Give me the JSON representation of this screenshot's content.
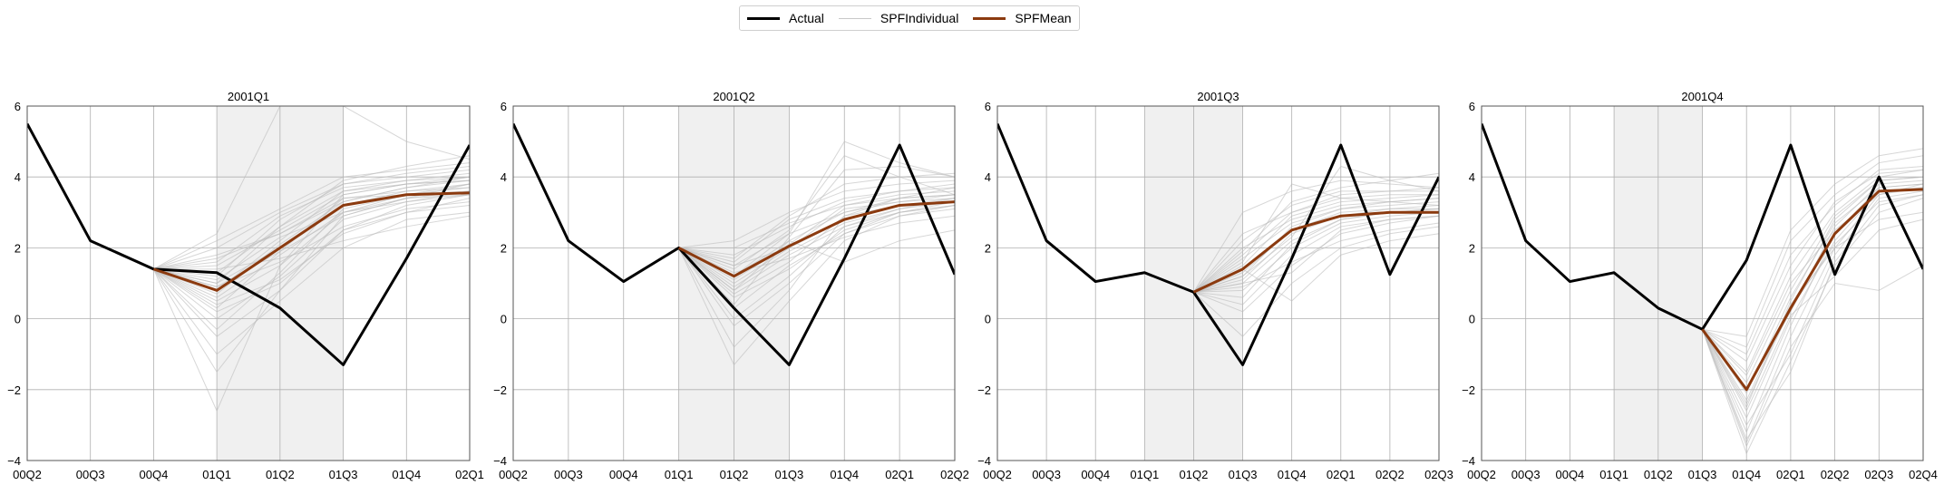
{
  "legend": {
    "items": [
      {
        "label": "Actual",
        "color": "#000000"
      },
      {
        "label": "SPFIndividual",
        "color": "#c8c8c8"
      },
      {
        "label": "SPFMean",
        "color": "#8b3a0f"
      }
    ]
  },
  "colors": {
    "actual": "#000000",
    "individual": "#bdbdbd",
    "mean": "#8b3a0f",
    "shade": "#f0f0f0",
    "grid": "#b0b0b0"
  },
  "chart_data": [
    {
      "type": "line",
      "title": "2001Q1",
      "categories": [
        "00Q2",
        "00Q3",
        "00Q4",
        "01Q1",
        "01Q2",
        "01Q3",
        "01Q4",
        "02Q1"
      ],
      "ylim": [
        -4,
        6
      ],
      "yticks": [
        -4,
        -2,
        0,
        2,
        4,
        6
      ],
      "grid": true,
      "shaded_range": [
        "01Q1",
        "01Q3"
      ],
      "series": [
        {
          "name": "Actual",
          "values": [
            5.5,
            2.2,
            1.4,
            1.3,
            0.3,
            -1.3,
            1.7,
            4.9
          ]
        },
        {
          "name": "SPFMean",
          "values": [
            null,
            null,
            1.4,
            0.8,
            2.0,
            3.2,
            3.5,
            3.55
          ]
        }
      ],
      "individual_start_index": 2,
      "individual_start_value": 1.4,
      "individual_forecasts": [
        [
          0.5,
          1.5,
          3.0,
          3.5,
          3.8
        ],
        [
          1.0,
          2.0,
          3.2,
          3.6,
          3.7
        ],
        [
          1.5,
          2.5,
          3.5,
          3.8,
          4.0
        ],
        [
          0.2,
          1.0,
          2.5,
          3.2,
          3.5
        ],
        [
          0.8,
          2.2,
          3.6,
          3.9,
          4.1
        ],
        [
          1.2,
          2.8,
          3.8,
          4.0,
          4.2
        ],
        [
          -0.5,
          0.8,
          2.5,
          3.0,
          3.4
        ],
        [
          0.6,
          1.8,
          3.0,
          3.4,
          3.6
        ],
        [
          2.0,
          3.0,
          3.8,
          4.1,
          4.3
        ],
        [
          -1.0,
          0.5,
          2.0,
          2.8,
          3.0
        ],
        [
          1.8,
          2.4,
          3.3,
          3.7,
          3.9
        ],
        [
          0.0,
          1.2,
          2.8,
          3.3,
          3.6
        ],
        [
          1.3,
          2.6,
          3.9,
          4.3,
          4.6
        ],
        [
          -2.6,
          1.5,
          3.5,
          3.8,
          3.9
        ],
        [
          2.4,
          6.0,
          6.0,
          5.0,
          4.5
        ],
        [
          0.9,
          1.6,
          2.6,
          3.1,
          3.3
        ],
        [
          0.3,
          1.9,
          3.4,
          3.6,
          3.8
        ],
        [
          1.6,
          2.9,
          3.7,
          3.9,
          4.0
        ],
        [
          -0.3,
          1.3,
          3.1,
          3.5,
          3.7
        ],
        [
          1.1,
          2.3,
          3.0,
          3.3,
          3.5
        ],
        [
          0.7,
          2.1,
          3.3,
          3.7,
          4.0
        ],
        [
          1.4,
          1.7,
          2.2,
          2.6,
          2.9
        ],
        [
          -1.5,
          0.8,
          2.9,
          3.4,
          3.8
        ],
        [
          2.2,
          3.1,
          4.0,
          4.2,
          4.4
        ],
        [
          0.4,
          1.1,
          2.4,
          3.0,
          3.2
        ],
        [
          1.0,
          2.6,
          3.6,
          3.8,
          3.9
        ],
        [
          0.9,
          1.9,
          2.9,
          3.4,
          3.5
        ],
        [
          1.7,
          2.4,
          3.4,
          3.5,
          3.6
        ]
      ]
    },
    {
      "type": "line",
      "title": "2001Q2",
      "categories": [
        "00Q2",
        "00Q3",
        "00Q4",
        "01Q1",
        "01Q2",
        "01Q3",
        "01Q4",
        "02Q1",
        "02Q2"
      ],
      "ylim": [
        -4,
        6
      ],
      "yticks": [
        -4,
        -2,
        0,
        2,
        4,
        6
      ],
      "grid": true,
      "shaded_range": [
        "01Q1",
        "01Q3"
      ],
      "series": [
        {
          "name": "Actual",
          "values": [
            5.5,
            2.2,
            1.05,
            2.0,
            0.3,
            -1.3,
            1.7,
            4.9,
            1.25
          ]
        },
        {
          "name": "SPFMean",
          "values": [
            null,
            null,
            null,
            2.0,
            1.2,
            2.05,
            2.8,
            3.2,
            3.3
          ]
        }
      ],
      "individual_start_index": 3,
      "individual_start_value": 2.0,
      "individual_forecasts": [
        [
          0.8,
          1.8,
          2.6,
          3.0,
          3.2
        ],
        [
          1.5,
          2.4,
          3.0,
          3.3,
          3.4
        ],
        [
          1.0,
          2.0,
          2.8,
          3.2,
          3.3
        ],
        [
          0.3,
          1.5,
          2.4,
          2.9,
          3.1
        ],
        [
          1.8,
          2.6,
          3.3,
          3.6,
          3.7
        ],
        [
          -1.3,
          0.5,
          2.2,
          2.9,
          3.2
        ],
        [
          1.2,
          2.2,
          3.0,
          3.4,
          3.5
        ],
        [
          2.2,
          3.0,
          3.6,
          3.8,
          3.9
        ],
        [
          0.6,
          1.4,
          2.5,
          3.0,
          3.2
        ],
        [
          1.4,
          2.5,
          4.6,
          4.0,
          3.5
        ],
        [
          0.9,
          1.9,
          2.7,
          3.1,
          3.3
        ],
        [
          1.6,
          2.8,
          3.4,
          3.6,
          3.8
        ],
        [
          -0.2,
          1.0,
          2.4,
          3.0,
          3.3
        ],
        [
          1.1,
          2.1,
          3.2,
          3.5,
          3.6
        ],
        [
          1.3,
          1.7,
          2.3,
          2.7,
          2.9
        ],
        [
          0.4,
          2.3,
          4.2,
          4.3,
          4.0
        ],
        [
          2.0,
          2.7,
          3.2,
          3.4,
          3.5
        ],
        [
          0.7,
          1.6,
          2.9,
          3.2,
          3.4
        ],
        [
          1.2,
          2.4,
          5.0,
          4.4,
          4.0
        ],
        [
          0.0,
          1.2,
          2.6,
          3.1,
          3.4
        ],
        [
          1.7,
          2.9,
          3.8,
          4.0,
          4.1
        ],
        [
          0.8,
          2.2,
          1.6,
          2.2,
          2.5
        ],
        [
          1.5,
          2.0,
          3.1,
          3.3,
          3.5
        ],
        [
          -0.8,
          0.8,
          2.9,
          3.4,
          3.7
        ]
      ]
    },
    {
      "type": "line",
      "title": "2001Q3",
      "categories": [
        "00Q2",
        "00Q3",
        "00Q4",
        "01Q1",
        "01Q2",
        "01Q3",
        "01Q4",
        "02Q1",
        "02Q2",
        "02Q3"
      ],
      "ylim": [
        -4,
        6
      ],
      "yticks": [
        -4,
        -2,
        0,
        2,
        4,
        6
      ],
      "grid": true,
      "shaded_range": [
        "01Q1",
        "01Q3"
      ],
      "series": [
        {
          "name": "Actual",
          "values": [
            5.5,
            2.2,
            1.05,
            1.3,
            0.75,
            -1.3,
            1.7,
            4.9,
            1.25,
            4.0
          ]
        },
        {
          "name": "SPFMean",
          "values": [
            null,
            null,
            null,
            null,
            0.75,
            1.4,
            2.5,
            2.9,
            3.0,
            3.0
          ]
        }
      ],
      "individual_start_index": 4,
      "individual_start_value": 0.75,
      "individual_forecasts": [
        [
          1.0,
          2.2,
          2.8,
          3.0,
          3.1
        ],
        [
          1.8,
          3.0,
          3.4,
          3.5,
          3.5
        ],
        [
          0.4,
          1.8,
          2.6,
          2.8,
          2.9
        ],
        [
          2.2,
          3.2,
          3.6,
          3.6,
          3.7
        ],
        [
          1.2,
          2.6,
          3.1,
          3.2,
          3.3
        ],
        [
          -0.5,
          1.0,
          2.0,
          2.4,
          2.6
        ],
        [
          1.6,
          3.8,
          3.4,
          3.3,
          3.2
        ],
        [
          0.8,
          2.0,
          2.7,
          2.9,
          3.0
        ],
        [
          2.0,
          2.8,
          3.2,
          3.3,
          3.4
        ],
        [
          1.4,
          0.5,
          1.8,
          2.2,
          2.4
        ],
        [
          1.1,
          2.4,
          2.9,
          3.1,
          3.2
        ],
        [
          3.0,
          3.6,
          3.9,
          3.8,
          3.7
        ],
        [
          0.2,
          1.5,
          2.4,
          2.7,
          2.9
        ],
        [
          1.5,
          2.9,
          3.3,
          3.4,
          3.5
        ],
        [
          1.3,
          2.5,
          3.0,
          3.1,
          3.1
        ],
        [
          0.9,
          1.6,
          2.2,
          2.5,
          2.7
        ],
        [
          1.9,
          3.3,
          3.7,
          3.9,
          4.1
        ],
        [
          1.7,
          2.7,
          3.1,
          3.3,
          3.4
        ],
        [
          0.6,
          2.1,
          2.8,
          3.0,
          3.1
        ],
        [
          1.2,
          2.3,
          4.3,
          3.9,
          3.6
        ],
        [
          2.4,
          3.0,
          3.5,
          3.6,
          3.6
        ],
        [
          1.0,
          1.3,
          2.5,
          2.8,
          2.9
        ]
      ]
    },
    {
      "type": "line",
      "title": "2001Q4",
      "categories": [
        "00Q2",
        "00Q3",
        "00Q4",
        "01Q1",
        "01Q2",
        "01Q3",
        "01Q4",
        "02Q1",
        "02Q2",
        "02Q3",
        "02Q4"
      ],
      "ylim": [
        -4,
        6
      ],
      "yticks": [
        -4,
        -2,
        0,
        2,
        4,
        6
      ],
      "grid": true,
      "shaded_range": [
        "01Q1",
        "01Q3"
      ],
      "series": [
        {
          "name": "Actual",
          "values": [
            5.5,
            2.2,
            1.05,
            1.3,
            0.3,
            -0.3,
            1.65,
            4.9,
            1.25,
            4.0,
            1.4
          ]
        },
        {
          "name": "SPFMean",
          "values": [
            null,
            null,
            null,
            null,
            null,
            -0.3,
            -2.0,
            0.3,
            2.4,
            3.6,
            3.65
          ]
        }
      ],
      "individual_start_index": 5,
      "individual_start_value": -0.3,
      "individual_forecasts": [
        [
          -3.5,
          -0.5,
          2.0,
          3.5,
          3.8
        ],
        [
          -2.5,
          0.5,
          2.8,
          3.9,
          4.0
        ],
        [
          -1.5,
          1.2,
          3.0,
          4.0,
          4.2
        ],
        [
          -3.0,
          -1.0,
          1.8,
          3.4,
          3.6
        ],
        [
          -2.0,
          0.2,
          2.6,
          3.8,
          3.9
        ],
        [
          -1.0,
          1.8,
          3.2,
          4.2,
          4.3
        ],
        [
          -3.8,
          -1.2,
          1.5,
          3.0,
          3.4
        ],
        [
          -2.8,
          0.0,
          2.2,
          3.6,
          3.7
        ],
        [
          -1.8,
          0.8,
          2.9,
          3.9,
          4.0
        ],
        [
          -3.2,
          -0.2,
          2.4,
          3.7,
          3.8
        ],
        [
          -0.8,
          2.2,
          3.5,
          4.4,
          4.6
        ],
        [
          -2.3,
          0.4,
          2.0,
          2.8,
          3.0
        ],
        [
          -2.6,
          0.1,
          1.2,
          2.5,
          2.8
        ],
        [
          -1.2,
          1.5,
          3.3,
          4.1,
          4.2
        ],
        [
          -3.6,
          -0.8,
          1.0,
          0.8,
          1.5
        ],
        [
          -2.1,
          0.6,
          2.7,
          3.7,
          3.8
        ],
        [
          -1.6,
          1.0,
          2.5,
          3.5,
          3.7
        ],
        [
          -3.4,
          -1.5,
          1.6,
          3.2,
          3.5
        ],
        [
          -2.4,
          0.3,
          2.1,
          3.3,
          3.5
        ],
        [
          -0.5,
          2.5,
          3.8,
          4.6,
          4.8
        ]
      ]
    }
  ]
}
